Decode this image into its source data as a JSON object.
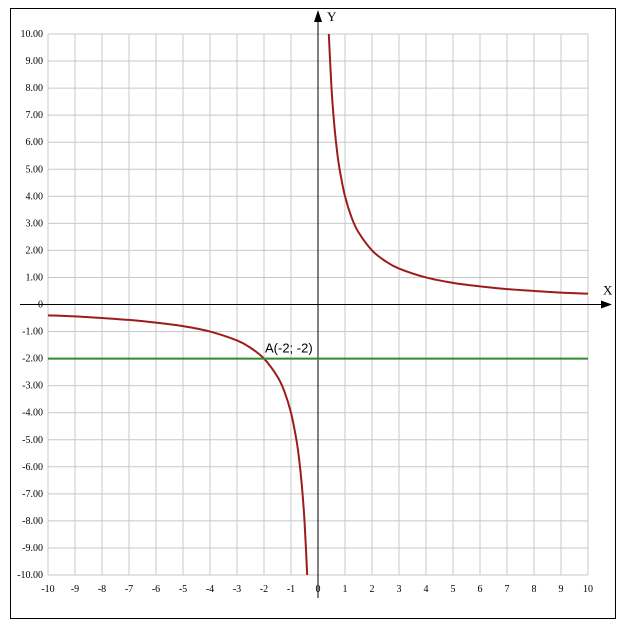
{
  "chart_data": {
    "type": "line",
    "xlabel": "X",
    "ylabel": "Y",
    "xlim": [
      -10,
      10
    ],
    "ylim": [
      -10,
      10
    ],
    "grid": true,
    "x_ticks": [
      "-10",
      "-9",
      "-8",
      "-7",
      "-6",
      "-5",
      "-4",
      "-3",
      "-2",
      "-1",
      "0",
      "1",
      "2",
      "3",
      "4",
      "5",
      "6",
      "7",
      "8",
      "9",
      "10"
    ],
    "y_ticks": [
      "10.00",
      "9.00",
      "8.00",
      "7.00",
      "6.00",
      "5.00",
      "4.00",
      "3.00",
      "2.00",
      "1.00",
      "0",
      "-1.00",
      "-2.00",
      "-3.00",
      "-4.00",
      "-5.00",
      "-6.00",
      "-7.00",
      "-8.00",
      "-9.00",
      "-10.00"
    ],
    "series": [
      {
        "color": "#9b1c1c",
        "points": [
          [
            -10,
            -0.4
          ],
          [
            -9,
            -0.44
          ],
          [
            -8,
            -0.5
          ],
          [
            -7,
            -0.57
          ],
          [
            -6,
            -0.67
          ],
          [
            -5,
            -0.8
          ],
          [
            -4,
            -1.0
          ],
          [
            -3,
            -1.33
          ],
          [
            -2.5,
            -1.6
          ],
          [
            -2,
            -2.0
          ],
          [
            -1.5,
            -2.67
          ],
          [
            -1.25,
            -3.2
          ],
          [
            -1,
            -4.0
          ],
          [
            -0.8,
            -5.0
          ],
          [
            -0.7,
            -5.71
          ],
          [
            -0.6,
            -6.67
          ],
          [
            -0.5,
            -8.0
          ],
          [
            -0.4,
            -10.0
          ]
        ]
      },
      {
        "color": "#9b1c1c",
        "points": [
          [
            0.4,
            10.0
          ],
          [
            0.5,
            8.0
          ],
          [
            0.6,
            6.67
          ],
          [
            0.7,
            5.71
          ],
          [
            0.8,
            5.0
          ],
          [
            1,
            4.0
          ],
          [
            1.25,
            3.2
          ],
          [
            1.5,
            2.67
          ],
          [
            2,
            2.0
          ],
          [
            2.5,
            1.6
          ],
          [
            3,
            1.33
          ],
          [
            4,
            1.0
          ],
          [
            5,
            0.8
          ],
          [
            6,
            0.67
          ],
          [
            7,
            0.57
          ],
          [
            8,
            0.5
          ],
          [
            9,
            0.44
          ],
          [
            10,
            0.4
          ]
        ]
      },
      {
        "color": "#2e8b2e",
        "points": [
          [
            -10,
            -2
          ],
          [
            10,
            -2
          ]
        ]
      }
    ],
    "annotations": [
      {
        "text": "A(-2; -2)",
        "x": -2,
        "y": -2
      }
    ]
  }
}
